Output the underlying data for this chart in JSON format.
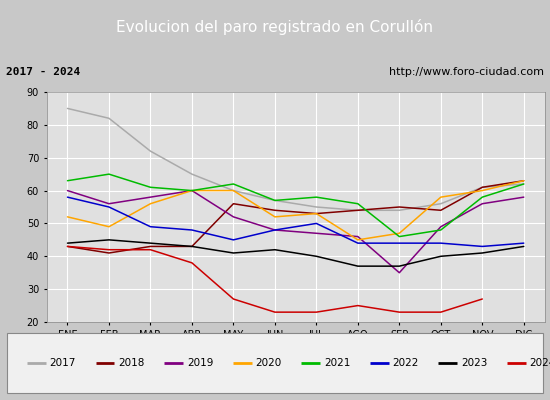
{
  "title": "Evolucion del paro registrado en Corullón",
  "subtitle_left": "2017 - 2024",
  "subtitle_right": "http://www.foro-ciudad.com",
  "months": [
    "ENE",
    "FEB",
    "MAR",
    "ABR",
    "MAY",
    "JUN",
    "JUL",
    "AGO",
    "SEP",
    "OCT",
    "NOV",
    "DIC"
  ],
  "ylim": [
    20,
    90
  ],
  "yticks": [
    20,
    30,
    40,
    50,
    60,
    70,
    80,
    90
  ],
  "series": {
    "2017": {
      "color": "#aaaaaa",
      "values": [
        85,
        82,
        72,
        65,
        60,
        57,
        55,
        54,
        54,
        56,
        61,
        62
      ]
    },
    "2018": {
      "color": "#800000",
      "values": [
        43,
        41,
        43,
        43,
        56,
        54,
        53,
        54,
        55,
        54,
        61,
        63
      ]
    },
    "2019": {
      "color": "#800080",
      "values": [
        60,
        56,
        58,
        60,
        52,
        48,
        47,
        46,
        35,
        49,
        56,
        58
      ]
    },
    "2020": {
      "color": "#ffa500",
      "values": [
        52,
        49,
        56,
        60,
        60,
        52,
        53,
        45,
        47,
        58,
        60,
        63
      ]
    },
    "2021": {
      "color": "#00bb00",
      "values": [
        63,
        65,
        61,
        60,
        62,
        57,
        58,
        56,
        46,
        48,
        58,
        62
      ]
    },
    "2022": {
      "color": "#0000cc",
      "values": [
        58,
        55,
        49,
        48,
        45,
        48,
        50,
        44,
        44,
        44,
        43,
        44
      ]
    },
    "2023": {
      "color": "#000000",
      "values": [
        44,
        45,
        44,
        43,
        41,
        42,
        40,
        37,
        37,
        40,
        41,
        43
      ]
    },
    "2024": {
      "color": "#cc0000",
      "values": [
        43,
        42,
        42,
        38,
        27,
        23,
        23,
        25,
        23,
        23,
        27,
        null
      ]
    }
  },
  "title_bg_color": "#4472c4",
  "title_text_color": "#ffffff",
  "subtitle_bg_color": "#d8d8d8",
  "plot_bg_color": "#e0e0e0",
  "grid_color": "#ffffff",
  "fig_bg_color": "#c8c8c8",
  "legend_bg_color": "#f0f0f0",
  "title_fontsize": 11,
  "subtitle_fontsize": 8,
  "legend_fontsize": 7.5,
  "tick_fontsize": 7
}
